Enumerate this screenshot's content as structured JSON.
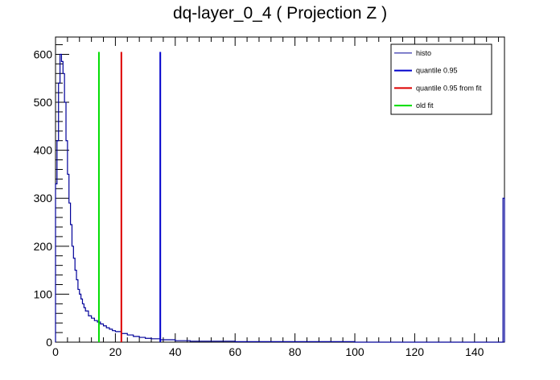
{
  "chart_data": {
    "type": "histogram",
    "title": "dq-layer_0_4 ( Projection Z )",
    "xlabel": "",
    "ylabel": "",
    "xlim": [
      0,
      150
    ],
    "ylim": [
      0,
      636
    ],
    "x_ticks": [
      0,
      20,
      40,
      60,
      80,
      100,
      120,
      140
    ],
    "y_ticks": [
      0,
      100,
      200,
      300,
      400,
      500,
      600
    ],
    "grid": false,
    "legend_position": "top-right",
    "histogram": {
      "name": "histo",
      "color": "#000099",
      "points": [
        [
          0,
          330
        ],
        [
          0.5,
          420
        ],
        [
          1,
          540
        ],
        [
          1.5,
          600
        ],
        [
          2,
          585
        ],
        [
          2.5,
          560
        ],
        [
          3,
          500
        ],
        [
          3.5,
          420
        ],
        [
          4,
          350
        ],
        [
          4.5,
          290
        ],
        [
          5,
          245
        ],
        [
          5.5,
          200
        ],
        [
          6,
          175
        ],
        [
          6.5,
          150
        ],
        [
          7,
          130
        ],
        [
          7.5,
          110
        ],
        [
          8,
          100
        ],
        [
          8.5,
          90
        ],
        [
          9,
          80
        ],
        [
          9.5,
          72
        ],
        [
          10,
          65
        ],
        [
          11,
          55
        ],
        [
          12,
          50
        ],
        [
          13,
          45
        ],
        [
          14,
          42
        ],
        [
          15,
          38
        ],
        [
          16,
          34
        ],
        [
          17,
          30
        ],
        [
          18,
          27
        ],
        [
          19,
          24
        ],
        [
          20,
          22
        ],
        [
          22,
          18
        ],
        [
          24,
          15
        ],
        [
          26,
          12
        ],
        [
          28,
          10
        ],
        [
          30,
          8
        ],
        [
          32,
          7
        ],
        [
          35,
          5
        ],
        [
          40,
          3
        ],
        [
          45,
          2
        ],
        [
          50,
          2
        ],
        [
          60,
          1
        ],
        [
          70,
          1
        ],
        [
          80,
          1
        ],
        [
          100,
          0
        ],
        [
          120,
          0
        ],
        [
          140,
          0
        ],
        [
          149.5,
          300
        ]
      ]
    },
    "vertical_lines": [
      {
        "name": "quantile 0.95",
        "x": 35,
        "y_max": 605,
        "color": "#0000cc"
      },
      {
        "name": "quantile 0.95 from fit",
        "x": 22,
        "y_max": 605,
        "color": "#dd0000"
      },
      {
        "name": "old fit",
        "x": 14.5,
        "y_max": 605,
        "color": "#00dd00"
      }
    ],
    "legend": [
      {
        "label": "histo",
        "color": "#000099"
      },
      {
        "label": "quantile 0.95",
        "color": "#0000cc"
      },
      {
        "label": "quantile 0.95 from fit",
        "color": "#dd0000"
      },
      {
        "label": "old fit",
        "color": "#00dd00"
      }
    ]
  }
}
